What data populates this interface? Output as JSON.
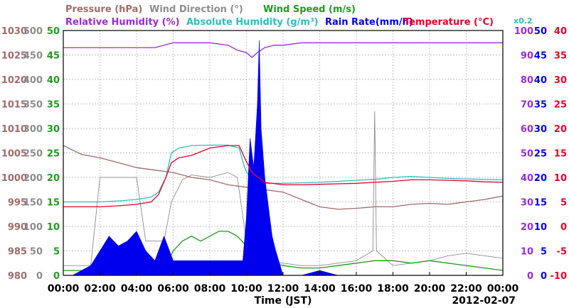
{
  "legend": {
    "pressure": "Pressure (hPa)",
    "wind_direction": "Wind Direction (°)",
    "wind_speed": "Wind Speed (m/s)",
    "relative_humidity": "Relative Humidity (%)",
    "absolute_humidity": "Absolute Humidity (g/m³)",
    "rain_rate": "Rain Rate(mm/h)",
    "temperature": "Temperature (°C)",
    "rain_scale": "x0.2"
  },
  "colors": {
    "pressure": "#a06a6a",
    "wind_direction": "#8c8c8c",
    "wind_speed": "#1f9a1f",
    "relative_humidity": "#9a2bd6",
    "absolute_humidity": "#2fbcbc",
    "rain_rate": "#0000ee",
    "temperature": "#e8002a",
    "grid": "#b0b0b0",
    "frame": "#000000"
  },
  "chart_data": {
    "type": "line",
    "xlabel": "Time (JST)",
    "date_label": "2012-02-07",
    "x_ticks": [
      "00:00",
      "02:00",
      "04:00",
      "06:00",
      "08:00",
      "10:00",
      "12:00",
      "14:00",
      "16:00",
      "18:00",
      "20:00",
      "22:00",
      "00:00"
    ],
    "xlim": [
      0,
      24
    ],
    "grid": true,
    "axes": {
      "pressure": {
        "ylim": [
          980,
          1030
        ],
        "ticks": [
          "980",
          "985",
          "990",
          "995",
          "1000",
          "1005",
          "1010",
          "1015",
          "1020",
          "1025",
          "1030"
        ]
      },
      "wind_direction": {
        "ylim": [
          0,
          500
        ],
        "ticks": [
          "0",
          "50",
          "100",
          "150",
          "200",
          "250",
          "300",
          "350",
          "400",
          "450",
          "500"
        ]
      },
      "wind_speed": {
        "ylim": [
          0,
          50
        ],
        "ticks": [
          "0",
          "5",
          "10",
          "15",
          "20",
          "25",
          "30",
          "35",
          "40",
          "45",
          "50"
        ]
      },
      "relative_humidity": {
        "ylim": [
          0,
          100
        ],
        "ticks": [
          "0",
          "10",
          "20",
          "30",
          "40",
          "50",
          "60",
          "70",
          "80",
          "90",
          "100"
        ]
      },
      "rain_rate": {
        "ylim": [
          0,
          50
        ],
        "ticks": [
          "0",
          "5",
          "10",
          "15",
          "20",
          "25",
          "30",
          "35",
          "40",
          "45",
          "50"
        ]
      },
      "temperature": {
        "ylim": [
          -10,
          40
        ],
        "ticks": [
          "-10",
          "-5",
          "0",
          "5",
          "10",
          "15",
          "20",
          "25",
          "30",
          "35",
          "40"
        ]
      }
    },
    "series": [
      {
        "key": "pressure",
        "axis": "pressure",
        "name": "Pressure (hPa)",
        "x": [
          0,
          1,
          2,
          3,
          4,
          5,
          6,
          7,
          8,
          9,
          10,
          11,
          12,
          13,
          14,
          15,
          16,
          17,
          18,
          19,
          20,
          21,
          22,
          23,
          24
        ],
        "y": [
          1006.5,
          1004.7,
          1004,
          1003,
          1002,
          1001.5,
          1001,
          1000,
          999.5,
          998.5,
          998,
          997.5,
          997,
          995.5,
          994,
          993.5,
          993.7,
          994,
          994,
          994.5,
          994.7,
          994.5,
          995,
          995.5,
          996.2
        ]
      },
      {
        "key": "wind_direction",
        "axis": "wind_direction",
        "name": "Wind Direction (°)",
        "x": [
          0,
          1,
          1.5,
          2,
          3,
          4,
          4.5,
          5,
          5.5,
          5.9,
          6.5,
          7,
          8,
          9,
          9.5,
          10,
          10.5,
          11,
          12,
          13,
          14,
          15,
          16,
          16.9,
          17,
          17.1,
          18,
          19,
          20,
          21,
          22,
          23,
          24
        ],
        "y": [
          20,
          20,
          20,
          200,
          200,
          200,
          70,
          70,
          70,
          150,
          195,
          205,
          200,
          210,
          200,
          70,
          40,
          30,
          25,
          20,
          20,
          25,
          30,
          50,
          335,
          50,
          20,
          25,
          30,
          40,
          45,
          40,
          35
        ]
      },
      {
        "key": "wind_speed",
        "axis": "wind_speed",
        "name": "Wind Speed (m/s)",
        "x": [
          0,
          1,
          2,
          3,
          4,
          5,
          5.5,
          6,
          6.5,
          7,
          7.5,
          8,
          8.5,
          9,
          9.5,
          10,
          10.5,
          11,
          11.5,
          12,
          13,
          14,
          15,
          16,
          17,
          18,
          19,
          20,
          21,
          22,
          23,
          24
        ],
        "y": [
          1,
          1,
          1.5,
          1,
          1.5,
          1,
          1,
          5,
          7,
          8,
          7,
          8,
          9,
          9,
          8,
          6,
          4,
          3,
          2.5,
          2,
          1.5,
          1.5,
          2,
          2.5,
          3,
          3,
          2.5,
          3,
          2.5,
          2,
          1.5,
          1
        ]
      },
      {
        "key": "relative_humidity",
        "axis": "relative_humidity",
        "name": "Relative Humidity (%)",
        "x": [
          0,
          1,
          2,
          3,
          4,
          5,
          5.5,
          6,
          7,
          8,
          9,
          9.5,
          10,
          10.3,
          10.6,
          11,
          11.5,
          12,
          13,
          14,
          16,
          18,
          20,
          22,
          24
        ],
        "y": [
          93,
          93,
          93,
          93,
          93,
          93,
          94,
          95,
          95,
          95,
          94,
          92,
          91,
          89,
          91,
          93,
          94,
          94,
          95,
          95,
          95,
          95,
          95,
          95,
          95
        ]
      },
      {
        "key": "absolute_humidity",
        "axis": "pressure",
        "name": "Absolute Humidity (g/m³)",
        "x": [
          0,
          1,
          2,
          3,
          4,
          4.8,
          5.2,
          5.6,
          5.9,
          6.3,
          7,
          8,
          9,
          9.6,
          9.9,
          10.3,
          11,
          12,
          13,
          14,
          15,
          16,
          17,
          18,
          19,
          20,
          21,
          22,
          23,
          24
        ],
        "y": [
          995,
          995,
          995,
          995.2,
          995.5,
          996,
          997,
          1000,
          1005,
          1006,
          1006.5,
          1006.6,
          1006.6,
          1006,
          1002,
          999,
          998.8,
          998.8,
          998.9,
          999,
          999.2,
          999.4,
          999.6,
          1000,
          1000.2,
          1000,
          999.8,
          999.7,
          999.6,
          999.5
        ]
      },
      {
        "key": "rain_rate",
        "axis": "rain_rate",
        "name": "Rain Rate(mm/h)",
        "x": [
          0,
          0.5,
          1,
          1.5,
          2,
          2.5,
          3,
          3.5,
          4,
          4.5,
          5,
          5.5,
          6,
          6.5,
          7,
          7.5,
          8,
          8.5,
          9,
          9.5,
          9.8,
          10,
          10.2,
          10.4,
          10.6,
          10.7,
          10.8,
          11,
          11.2,
          11.4,
          11.6,
          12,
          13,
          14,
          15,
          16,
          17,
          18,
          19,
          20,
          21,
          22,
          23,
          24
        ],
        "y": [
          0,
          0,
          1,
          2,
          5,
          8,
          6,
          7,
          9,
          5,
          3,
          8,
          3,
          3,
          3,
          3,
          3,
          3,
          3,
          3,
          3,
          12,
          28,
          22,
          35,
          48,
          30,
          20,
          14,
          8,
          5,
          0,
          0,
          1,
          0,
          0,
          0,
          0,
          0,
          0,
          0,
          0,
          0,
          0
        ]
      },
      {
        "key": "temperature",
        "axis": "temperature",
        "name": "Temperature (°C)",
        "x": [
          0,
          1,
          2,
          3,
          4,
          4.8,
          5.2,
          5.6,
          5.9,
          6.3,
          7,
          8,
          9,
          9.6,
          9.9,
          10.3,
          11,
          12,
          13,
          14,
          15,
          16,
          17,
          18,
          19,
          20,
          21,
          22,
          23,
          24
        ],
        "y": [
          4,
          4,
          4,
          4.2,
          4.5,
          5,
          6.5,
          10,
          13,
          14,
          14.5,
          16,
          16.5,
          16.5,
          14,
          11,
          9,
          8.5,
          8.5,
          8.6,
          8.7,
          8.8,
          9,
          9.2,
          9.5,
          9.5,
          9.4,
          9.3,
          9.1,
          9
        ]
      }
    ]
  }
}
